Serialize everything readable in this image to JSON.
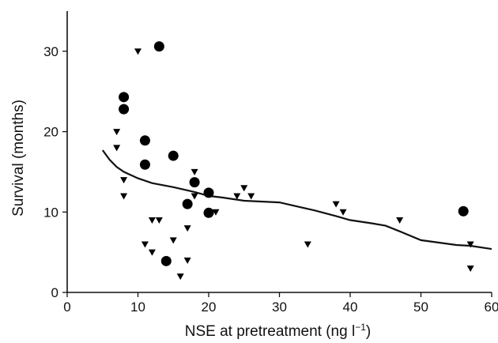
{
  "chart_data": {
    "type": "scatter",
    "xlabel": {
      "main": "NSE at pretreatment (ng l",
      "sup": "−1",
      "end": ")"
    },
    "ylabel": "Survival (months)",
    "xlim": [
      0,
      60
    ],
    "ylim": [
      0,
      35
    ],
    "xticks": [
      0,
      10,
      20,
      30,
      40,
      50,
      60
    ],
    "yticks": [
      0,
      10,
      20,
      30
    ],
    "grid": false,
    "series": [
      {
        "marker": "circle",
        "color": "#000000",
        "points": [
          [
            13,
            30.6
          ],
          [
            8,
            24.3
          ],
          [
            8,
            22.8
          ],
          [
            11,
            18.9
          ],
          [
            15,
            17.0
          ],
          [
            11,
            15.9
          ],
          [
            18,
            13.7
          ],
          [
            20,
            12.4
          ],
          [
            17,
            11.0
          ],
          [
            20,
            9.9
          ],
          [
            14,
            3.9
          ],
          [
            56,
            10.1
          ]
        ]
      },
      {
        "marker": "triangle-down",
        "color": "#000000",
        "points": [
          [
            10,
            30.0
          ],
          [
            7,
            20.0
          ],
          [
            7,
            18.0
          ],
          [
            8,
            14.0
          ],
          [
            8,
            12.0
          ],
          [
            12,
            9.0
          ],
          [
            13,
            9.0
          ],
          [
            11,
            6.0
          ],
          [
            12,
            5.0
          ],
          [
            15,
            6.5
          ],
          [
            16,
            2.0
          ],
          [
            17,
            4.0
          ],
          [
            17,
            8.0
          ],
          [
            18,
            15.0
          ],
          [
            18,
            12.0
          ],
          [
            21,
            10.0
          ],
          [
            24,
            12.0
          ],
          [
            25,
            13.0
          ],
          [
            26,
            12.0
          ],
          [
            34,
            6.0
          ],
          [
            38,
            11.0
          ],
          [
            39,
            10.0
          ],
          [
            47,
            9.0
          ],
          [
            57,
            6.0
          ],
          [
            57,
            3.0
          ]
        ]
      },
      {
        "marker": "line",
        "color": "#000000",
        "points": [
          [
            5,
            17.7
          ],
          [
            6,
            16.5
          ],
          [
            7,
            15.6
          ],
          [
            8,
            15.0
          ],
          [
            10,
            14.2
          ],
          [
            12,
            13.6
          ],
          [
            15,
            13.1
          ],
          [
            18,
            12.5
          ],
          [
            20,
            12.0
          ],
          [
            22,
            11.8
          ],
          [
            25,
            11.4
          ],
          [
            30,
            11.2
          ],
          [
            35,
            10.2
          ],
          [
            38,
            9.5
          ],
          [
            40,
            9.0
          ],
          [
            43,
            8.6
          ],
          [
            45,
            8.3
          ],
          [
            47,
            7.6
          ],
          [
            50,
            6.5
          ],
          [
            55,
            5.9
          ],
          [
            57,
            5.8
          ],
          [
            60,
            5.4
          ]
        ]
      }
    ]
  }
}
